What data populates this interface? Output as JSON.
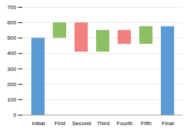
{
  "chart_data": {
    "type": "bar",
    "categories": [
      "Initial",
      "First",
      "Second",
      "Third",
      "Fourth",
      "Fifth",
      "Final"
    ],
    "bottoms": [
      0,
      500,
      410,
      410,
      460,
      460,
      0
    ],
    "values": [
      500,
      600,
      600,
      550,
      550,
      575,
      575
    ],
    "colors": [
      "#5B9BD5",
      "#8DC063",
      "#F1807E",
      "#8DC063",
      "#F1807E",
      "#8DC063",
      "#5B9BD5"
    ],
    "ylim": [
      0,
      700
    ],
    "yticks": [
      0,
      100,
      200,
      300,
      400,
      500,
      600,
      700
    ],
    "grid": true
  }
}
